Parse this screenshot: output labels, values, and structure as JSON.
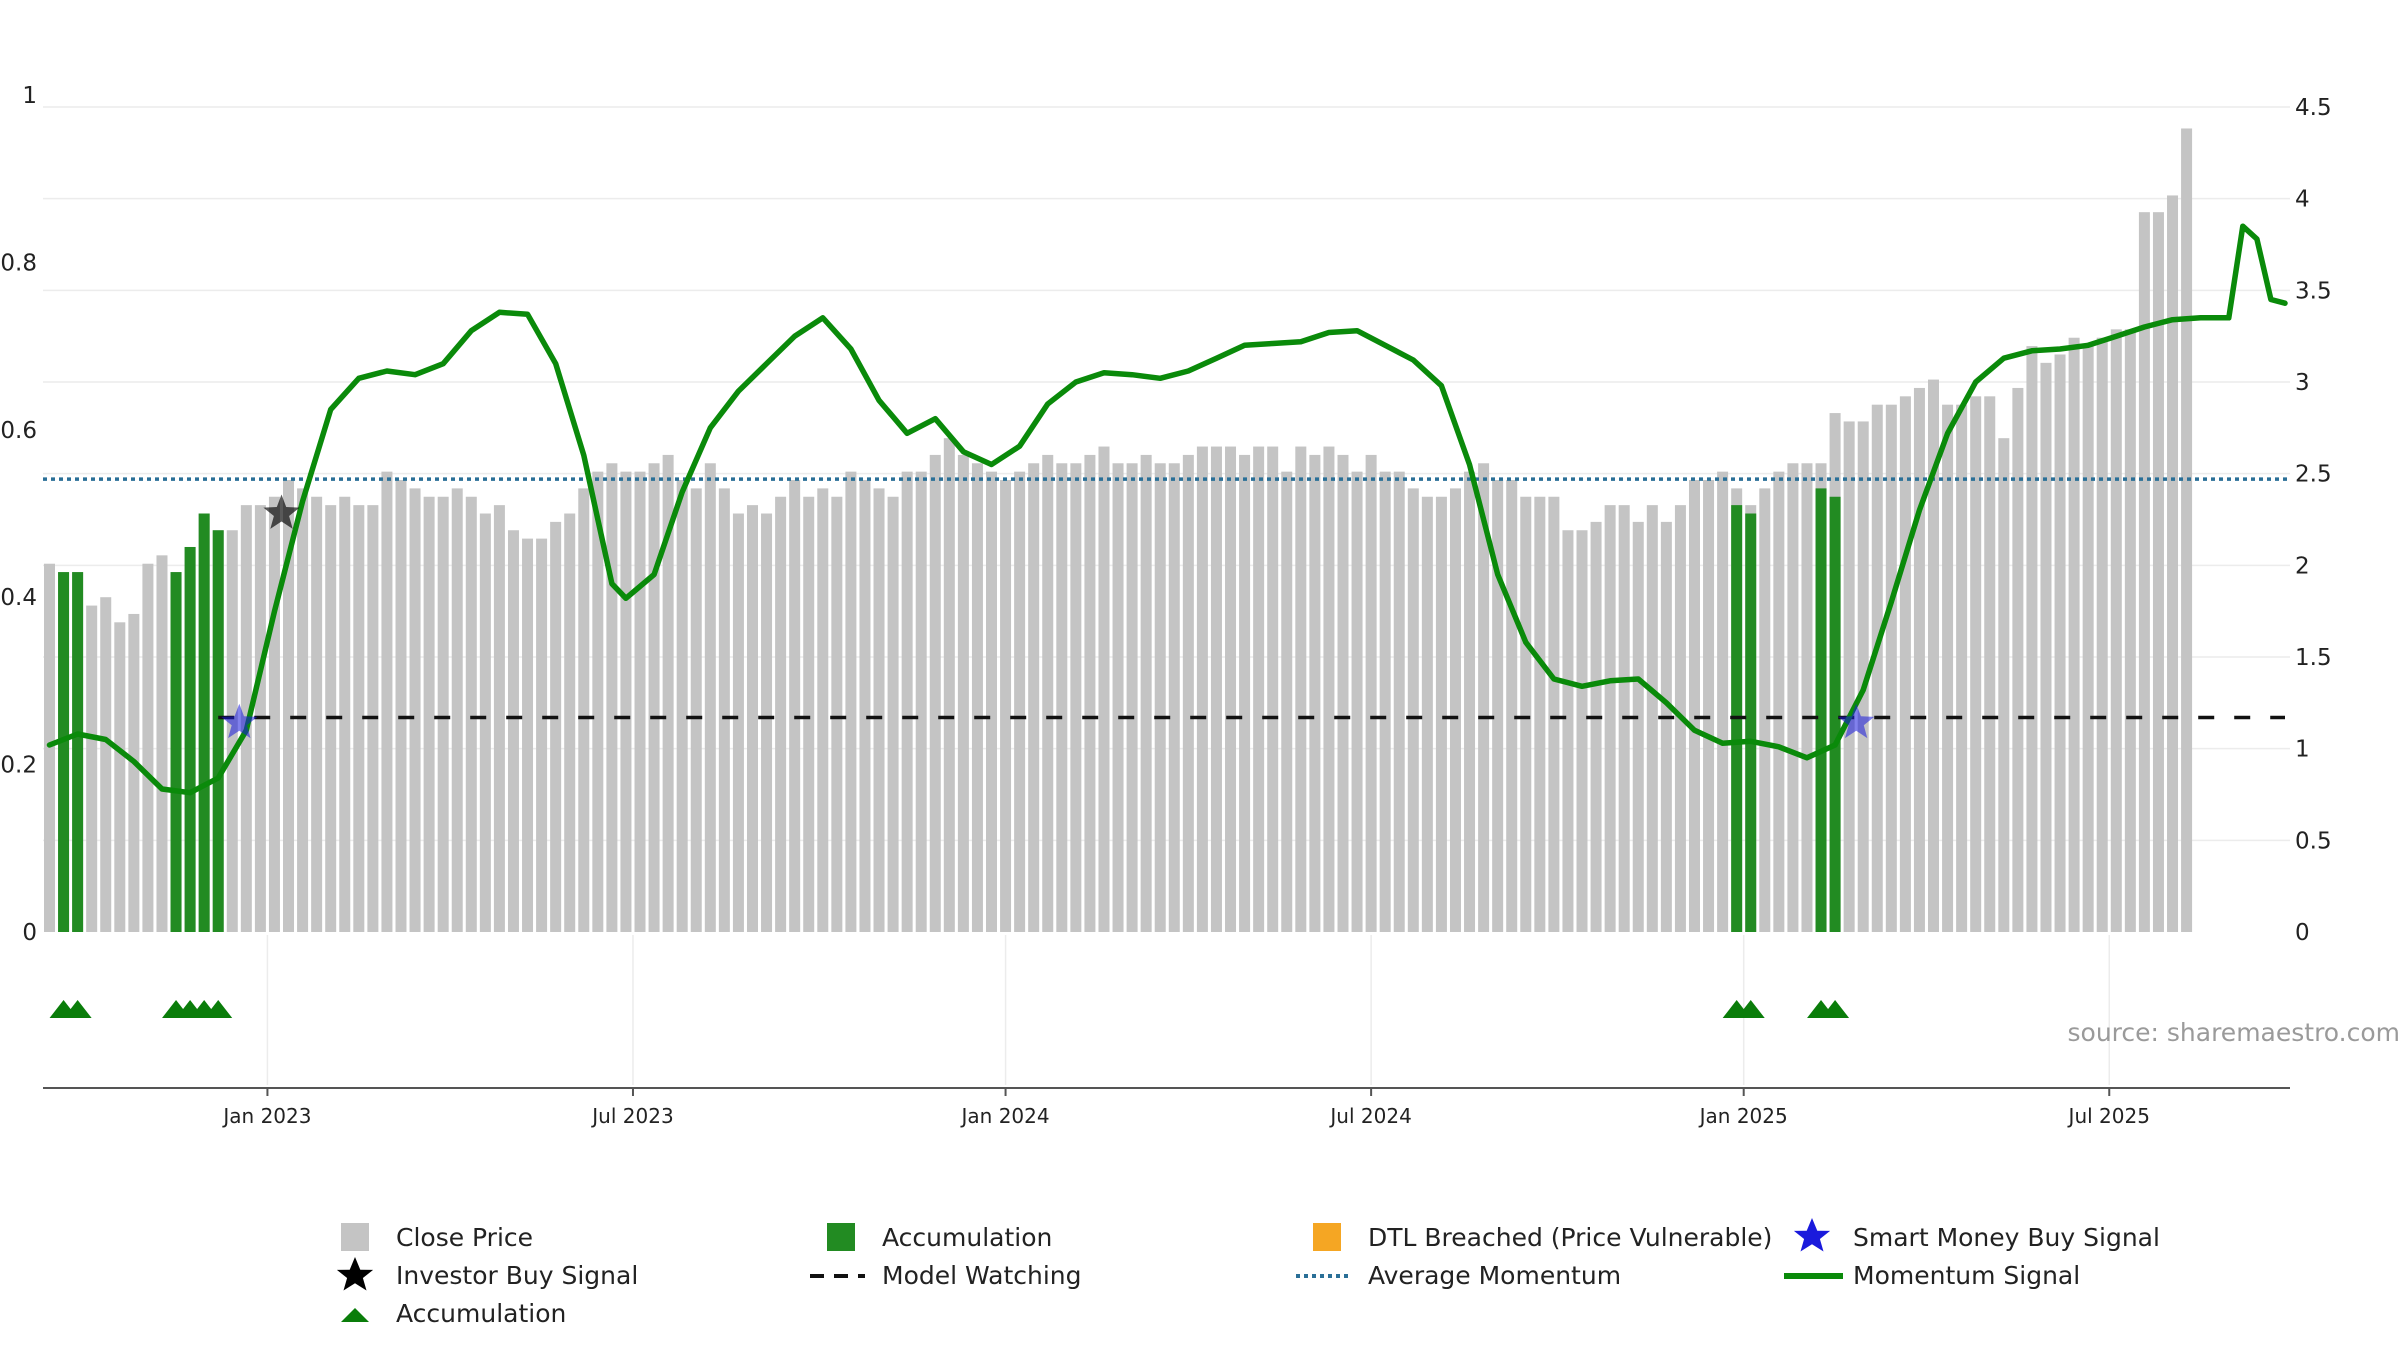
{
  "chart_data": {
    "type": "bar",
    "source_text": "source: sharemaestro.com",
    "left_axis": {
      "min": 0,
      "max": 1,
      "ticks": [
        0,
        0.2,
        0.4,
        0.6,
        0.8,
        1
      ],
      "tick_labels": [
        "0",
        "0.2",
        "0.4",
        "0.6",
        "0.8",
        "1"
      ]
    },
    "right_axis": {
      "min": 0,
      "max": 4.5,
      "ticks": [
        0,
        0.5,
        1,
        1.5,
        2,
        2.5,
        3,
        3.5,
        4,
        4.5
      ],
      "tick_labels": [
        "0",
        "0.5",
        "1",
        "1.5",
        "2",
        "2.5",
        "3",
        "3.5",
        "4",
        "4.5"
      ]
    },
    "x_axis": {
      "range_weeks": [
        0,
        159
      ],
      "ticks": [
        {
          "week": 15.5,
          "label": "Jan 2023"
        },
        {
          "week": 41.5,
          "label": "Jul 2023"
        },
        {
          "week": 68,
          "label": "Jan 2024"
        },
        {
          "week": 94,
          "label": "Jul 2024"
        },
        {
          "week": 120.5,
          "label": "Jan 2025"
        },
        {
          "week": 146.5,
          "label": "Jul 2025"
        }
      ]
    },
    "colors": {
      "close_price": "#c4c4c4",
      "accumulation": "#228b22",
      "dtl_breached": "#f5a623",
      "smart_money": "#1a1adc",
      "investor": "#000000",
      "model_watching": "#111111",
      "average_momentum": "#2a6f97",
      "momentum_signal": "#0a8a0a",
      "accumulation_marker": "#0a7d0a",
      "source_text": "#9a9a9a"
    },
    "close_price_bars": [
      0.44,
      0.43,
      0.43,
      0.39,
      0.4,
      0.37,
      0.38,
      0.44,
      0.45,
      0.43,
      0.46,
      0.5,
      0.48,
      0.48,
      0.51,
      0.51,
      0.52,
      0.54,
      0.53,
      0.52,
      0.51,
      0.52,
      0.51,
      0.51,
      0.55,
      0.54,
      0.53,
      0.52,
      0.52,
      0.53,
      0.52,
      0.5,
      0.51,
      0.48,
      0.47,
      0.47,
      0.49,
      0.5,
      0.53,
      0.55,
      0.56,
      0.55,
      0.55,
      0.56,
      0.57,
      0.54,
      0.53,
      0.56,
      0.53,
      0.5,
      0.51,
      0.5,
      0.52,
      0.54,
      0.52,
      0.53,
      0.52,
      0.55,
      0.54,
      0.53,
      0.52,
      0.55,
      0.55,
      0.57,
      0.59,
      0.57,
      0.56,
      0.55,
      0.54,
      0.55,
      0.56,
      0.57,
      0.56,
      0.56,
      0.57,
      0.58,
      0.56,
      0.56,
      0.57,
      0.56,
      0.56,
      0.57,
      0.58,
      0.58,
      0.58,
      0.57,
      0.58,
      0.58,
      0.55,
      0.58,
      0.57,
      0.58,
      0.57,
      0.55,
      0.57,
      0.55,
      0.55,
      0.53,
      0.52,
      0.52,
      0.53,
      0.55,
      0.56,
      0.54,
      0.54,
      0.52,
      0.52,
      0.52,
      0.48,
      0.48,
      0.49,
      0.51,
      0.51,
      0.49,
      0.51,
      0.49,
      0.51,
      0.54,
      0.54,
      0.55,
      0.53,
      0.51,
      0.53,
      0.55,
      0.56,
      0.56,
      0.56,
      0.62,
      0.61,
      0.61,
      0.63,
      0.63,
      0.64,
      0.65,
      0.66,
      0.63,
      0.63,
      0.64,
      0.64,
      0.59,
      0.65,
      0.7,
      0.68,
      0.69,
      0.71,
      0.7,
      0.71,
      0.72,
      0.72,
      0.86,
      0.86,
      0.88,
      0.96
    ],
    "accumulation_bars": [
      {
        "week": 1,
        "value": 0.43
      },
      {
        "week": 2,
        "value": 0.43
      },
      {
        "week": 9,
        "value": 0.43
      },
      {
        "week": 10,
        "value": 0.46
      },
      {
        "week": 11,
        "value": 0.5
      },
      {
        "week": 12,
        "value": 0.48
      },
      {
        "week": 120,
        "value": 0.51
      },
      {
        "week": 121,
        "value": 0.5
      },
      {
        "week": 126,
        "value": 0.53
      },
      {
        "week": 127,
        "value": 0.52
      }
    ],
    "accumulation_markers": [
      1,
      2,
      9,
      10,
      11,
      12,
      120,
      121,
      126,
      127
    ],
    "momentum_signal": [
      [
        0,
        1.02
      ],
      [
        2,
        1.08
      ],
      [
        4,
        1.05
      ],
      [
        6,
        0.93
      ],
      [
        8,
        0.78
      ],
      [
        10,
        0.76
      ],
      [
        12,
        0.84
      ],
      [
        14,
        1.1
      ],
      [
        16,
        1.75
      ],
      [
        18,
        2.35
      ],
      [
        20,
        2.85
      ],
      [
        22,
        3.02
      ],
      [
        24,
        3.06
      ],
      [
        26,
        3.04
      ],
      [
        28,
        3.1
      ],
      [
        30,
        3.28
      ],
      [
        32,
        3.38
      ],
      [
        34,
        3.37
      ],
      [
        36,
        3.1
      ],
      [
        38,
        2.6
      ],
      [
        40,
        1.9
      ],
      [
        41,
        1.82
      ],
      [
        43,
        1.95
      ],
      [
        45,
        2.4
      ],
      [
        47,
        2.75
      ],
      [
        49,
        2.95
      ],
      [
        51,
        3.1
      ],
      [
        53,
        3.25
      ],
      [
        55,
        3.35
      ],
      [
        57,
        3.18
      ],
      [
        59,
        2.9
      ],
      [
        61,
        2.72
      ],
      [
        63,
        2.8
      ],
      [
        65,
        2.62
      ],
      [
        67,
        2.55
      ],
      [
        69,
        2.65
      ],
      [
        71,
        2.88
      ],
      [
        73,
        3.0
      ],
      [
        75,
        3.05
      ],
      [
        77,
        3.04
      ],
      [
        79,
        3.02
      ],
      [
        81,
        3.06
      ],
      [
        83,
        3.13
      ],
      [
        85,
        3.2
      ],
      [
        87,
        3.21
      ],
      [
        89,
        3.22
      ],
      [
        91,
        3.27
      ],
      [
        93,
        3.28
      ],
      [
        95,
        3.2
      ],
      [
        97,
        3.12
      ],
      [
        99,
        2.98
      ],
      [
        101,
        2.55
      ],
      [
        103,
        1.95
      ],
      [
        105,
        1.58
      ],
      [
        107,
        1.38
      ],
      [
        109,
        1.34
      ],
      [
        111,
        1.37
      ],
      [
        113,
        1.38
      ],
      [
        115,
        1.25
      ],
      [
        117,
        1.1
      ],
      [
        119,
        1.03
      ],
      [
        121,
        1.04
      ],
      [
        123,
        1.01
      ],
      [
        125,
        0.95
      ],
      [
        127,
        1.02
      ],
      [
        129,
        1.32
      ],
      [
        131,
        1.8
      ],
      [
        133,
        2.3
      ],
      [
        135,
        2.72
      ],
      [
        137,
        3.0
      ],
      [
        139,
        3.13
      ],
      [
        141,
        3.17
      ],
      [
        143,
        3.18
      ],
      [
        145,
        3.2
      ],
      [
        147,
        3.25
      ],
      [
        149,
        3.3
      ],
      [
        151,
        3.34
      ],
      [
        153,
        3.35
      ],
      [
        155,
        3.35
      ],
      [
        156,
        3.85
      ],
      [
        157,
        3.78
      ],
      [
        158,
        3.45
      ],
      [
        159,
        3.43
      ]
    ],
    "average_momentum": 2.47,
    "model_watching": {
      "from_week": 12,
      "to_week": 159,
      "value": 1.17
    },
    "investor_buy_signals": [
      {
        "week": 16.5,
        "value": 0.5
      }
    ],
    "smart_money_buy_signals": [
      {
        "week": 13.5,
        "value": 0.25
      },
      {
        "week": 128.5,
        "value": 0.25
      }
    ]
  },
  "legend": {
    "close_price": "Close Price",
    "accumulation_bar": "Accumulation",
    "dtl_breached": "DTL Breached (Price Vulnerable)",
    "smart_money": "Smart Money Buy Signal",
    "investor_buy": "Investor Buy Signal",
    "model_watching": "Model Watching",
    "average_momentum": "Average Momentum",
    "momentum_signal": "Momentum Signal",
    "accumulation_marker": "Accumulation"
  }
}
